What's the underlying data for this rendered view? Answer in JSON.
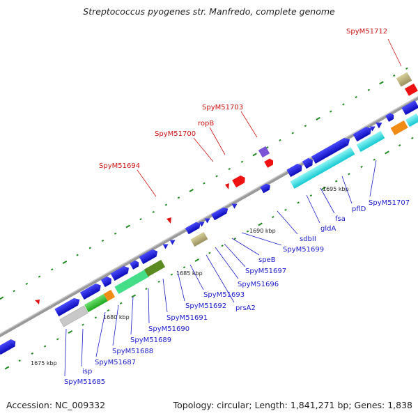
{
  "title": "Streptococcus pyogenes str. Manfredo, complete genome",
  "footer": {
    "accession": "Accession: NC_009332",
    "summary": "Topology: circular; Length: 1,841,271 bp; Genes: 1,838"
  },
  "scale_labels": [
    "1675 kbp",
    "1680 kbp",
    "1685 kbp",
    "1690 kbp",
    "1695 kbp"
  ],
  "genes_top": [
    "SpyM51712",
    "SpyM51703",
    "ropB",
    "SpyM51700",
    "SpyM51694"
  ],
  "genes_bottom": [
    "SpyM51685",
    "isp",
    "SpyM51687",
    "SpyM51688",
    "SpyM51689",
    "SpyM51690",
    "SpyM51691",
    "SpyM51692",
    "SpyM51693",
    "prsA2",
    "SpyM51696",
    "SpyM51697",
    "speB",
    "SpyM51699",
    "sdbII",
    "gldA",
    "fsa",
    "pflD",
    "SpyM51707"
  ],
  "colors": {
    "gene_forward": "#1515dd",
    "gene_rna": "#dd1111",
    "backbone": "#888888",
    "label_blue": "#1a1acc",
    "label_red": "#cc1111"
  }
}
